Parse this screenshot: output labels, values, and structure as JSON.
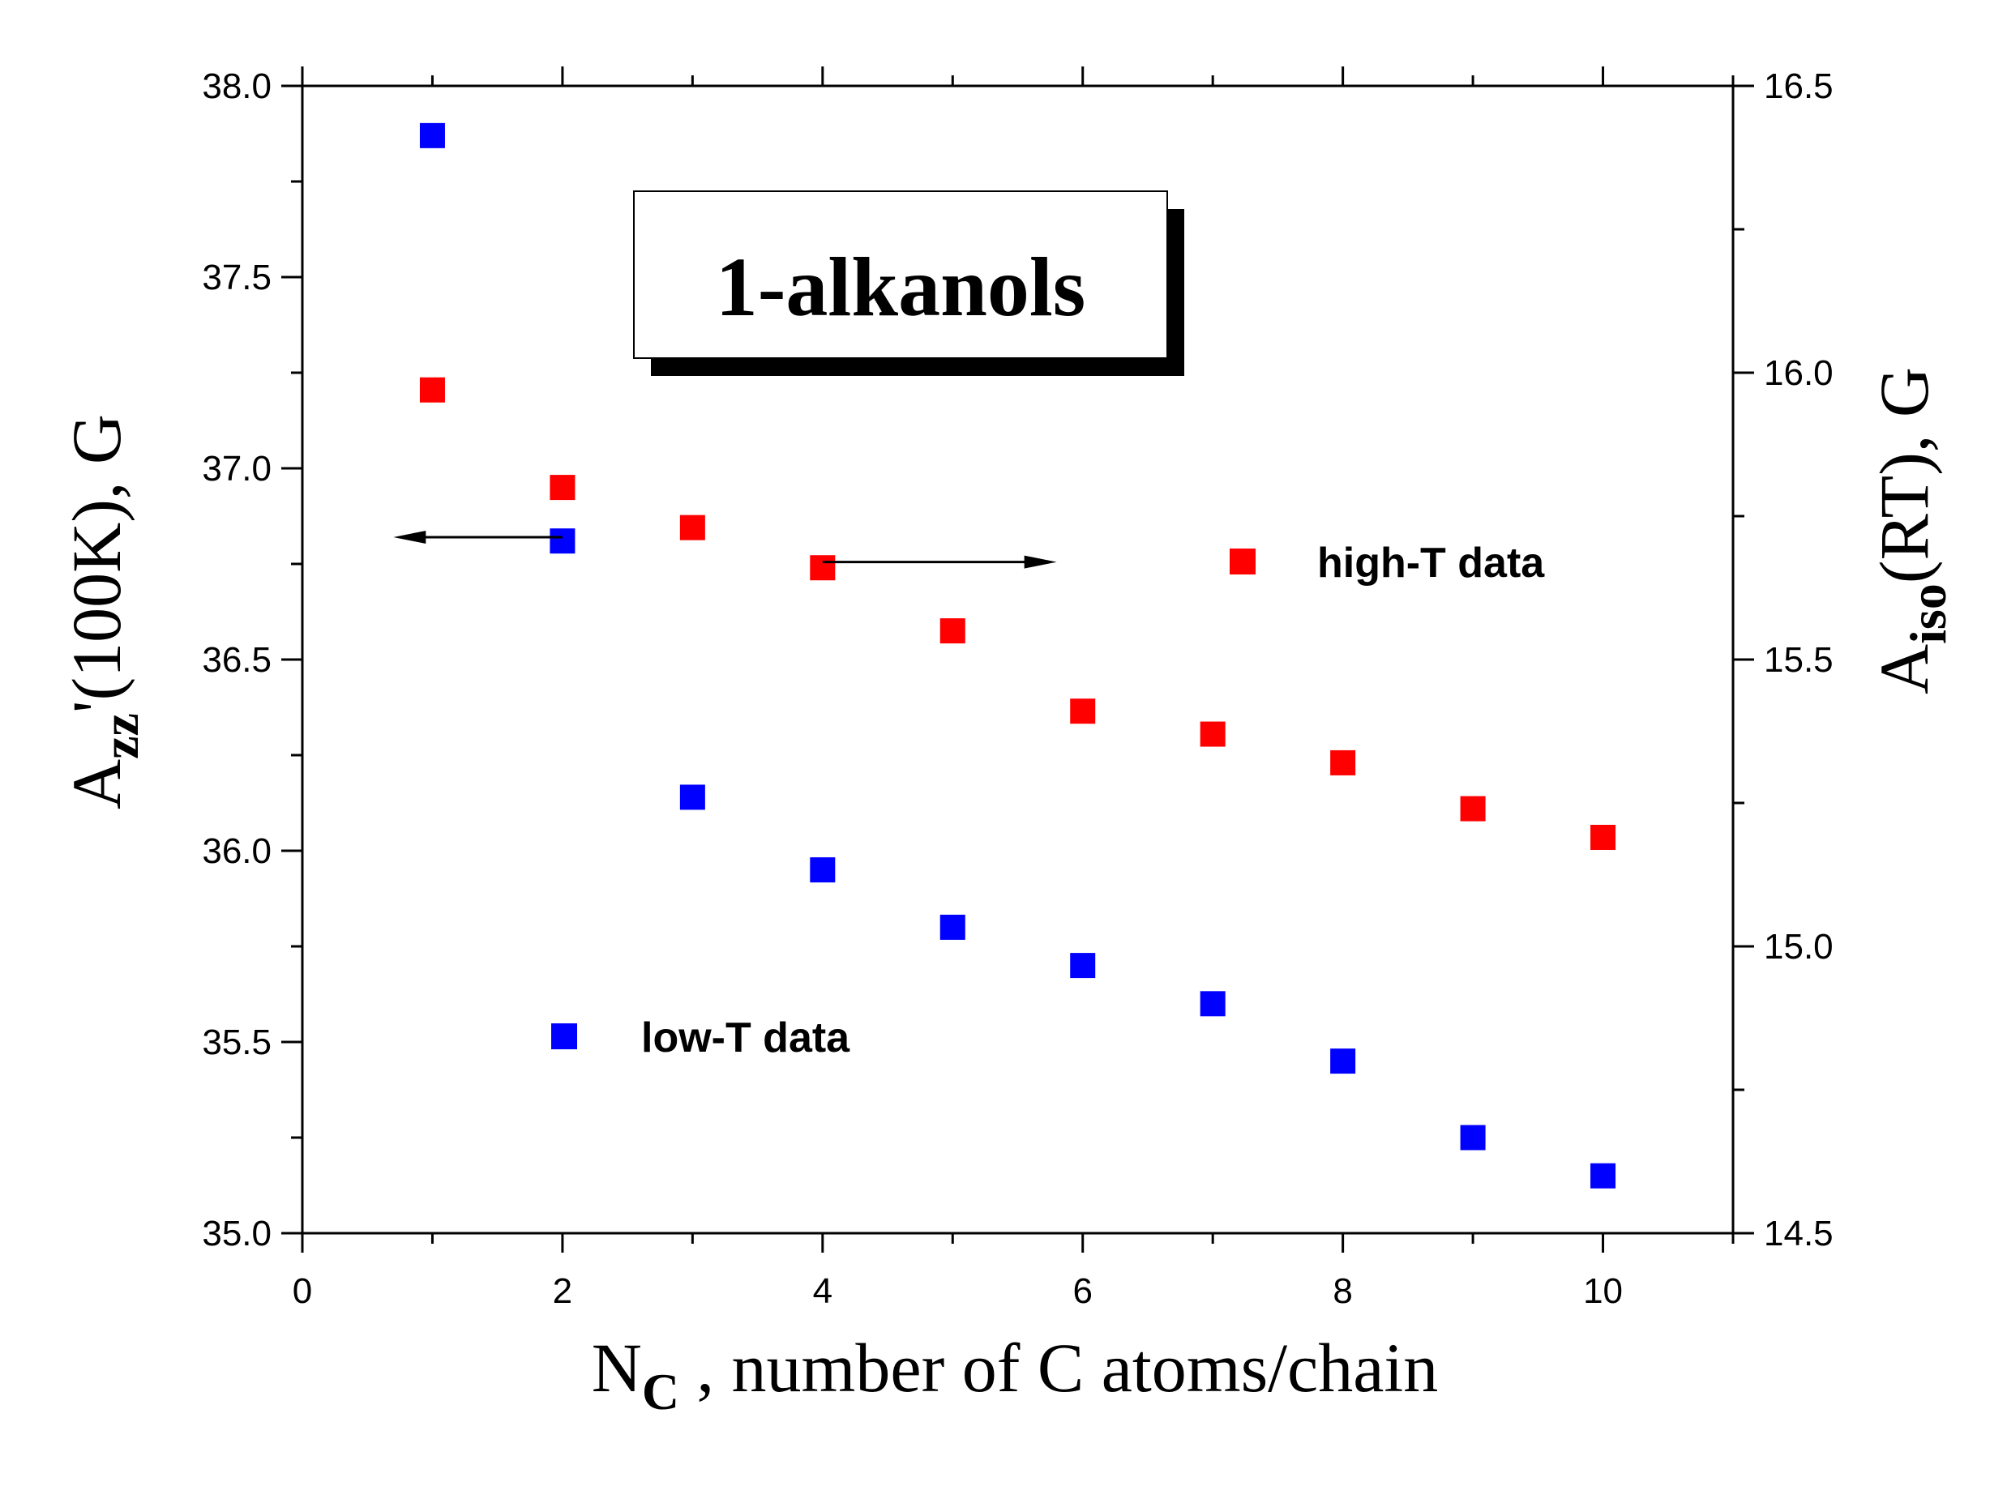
{
  "chart_data": {
    "type": "scatter",
    "annotation": "1-alkanols",
    "x_axis": {
      "label_main": "N",
      "label_sub": "C",
      "label_rest": " , number of C atoms/chain",
      "range": [
        0,
        11
      ],
      "ticks": [
        0,
        2,
        4,
        6,
        8,
        10
      ],
      "tick_labels": [
        "0",
        "2",
        "4",
        "6",
        "8",
        "10"
      ]
    },
    "y_axis_left": {
      "label_main": "A",
      "label_sub": "zz",
      "label_rest": "'(100K), G",
      "range": [
        35.0,
        38.0
      ],
      "ticks": [
        35.0,
        35.5,
        36.0,
        36.5,
        37.0,
        37.5,
        38.0
      ],
      "tick_labels": [
        "35.0",
        "35.5",
        "36.0",
        "36.5",
        "37.0",
        "37.5",
        "38.0"
      ]
    },
    "y_axis_right": {
      "label_main": "A",
      "label_sub": "iso",
      "label_rest": "(RT), G",
      "range": [
        14.5,
        16.5
      ],
      "ticks": [
        14.5,
        15.0,
        15.5,
        16.0,
        16.5
      ],
      "tick_labels": [
        "14.5",
        "15.0",
        "15.5",
        "16.0",
        "16.5"
      ]
    },
    "series": [
      {
        "name": "low-T data",
        "color": "#0000ff",
        "axis": "left",
        "x": [
          1,
          2,
          3,
          4,
          5,
          6,
          7,
          8,
          9,
          10
        ],
        "y": [
          37.87,
          36.81,
          36.14,
          35.95,
          35.8,
          35.7,
          35.6,
          35.45,
          35.25,
          35.15
        ]
      },
      {
        "name": "high-T data",
        "color": "#ff0000",
        "axis": "right",
        "x": [
          1,
          2,
          3,
          4,
          5,
          6,
          7,
          8,
          9,
          10
        ],
        "y": [
          15.97,
          15.8,
          15.73,
          15.66,
          15.55,
          15.41,
          15.37,
          15.32,
          15.24,
          15.19
        ]
      }
    ],
    "legend": [
      {
        "label": "high-T data",
        "color": "#ff0000",
        "placement": "center-right"
      },
      {
        "label": "low-T data",
        "color": "#0000ff",
        "placement": "lower-left"
      }
    ],
    "arrows": [
      {
        "points_to": "left axis",
        "x_from": 2,
        "x_to": 0.7,
        "axis": "left",
        "y": 36.82
      },
      {
        "points_to": "right axis",
        "x_from": 4,
        "x_to": 5.8,
        "axis": "right",
        "y": 15.67
      }
    ],
    "grid": false
  }
}
